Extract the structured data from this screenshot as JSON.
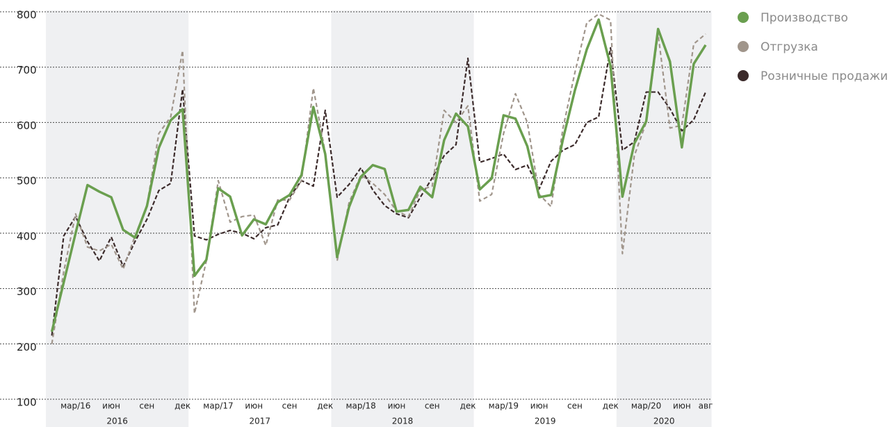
{
  "chart_data": {
    "type": "line",
    "categories": [
      null,
      null,
      "мар/16",
      null,
      null,
      "июн",
      null,
      null,
      "сен",
      null,
      null,
      "дек",
      null,
      null,
      "мар/17",
      null,
      null,
      "июн",
      null,
      null,
      "сен",
      null,
      null,
      "дек",
      null,
      null,
      "мар/18",
      null,
      null,
      "июн",
      null,
      null,
      "сен",
      null,
      null,
      "дек",
      null,
      null,
      "мар/19",
      null,
      null,
      "июн",
      null,
      null,
      "сен",
      null,
      null,
      "дек",
      null,
      null,
      "мар/20",
      null,
      null,
      "июн",
      null,
      "авг"
    ],
    "groups": [
      "2016",
      "2017",
      "2018",
      "2019",
      "2020"
    ],
    "ylim": [
      100,
      800
    ],
    "yticks": [
      100,
      200,
      300,
      400,
      500,
      600,
      700,
      800
    ],
    "grid": true,
    "series": [
      {
        "name": "Производство",
        "color": "#6a9f4f",
        "dash": null,
        "values": [
          222,
          311,
          400,
          487,
          475,
          465,
          406,
          392,
          449,
          554,
          604,
          624,
          323,
          352,
          481,
          466,
          396,
          425,
          416,
          456,
          469,
          505,
          628,
          543,
          357,
          447,
          502,
          523,
          516,
          439,
          442,
          484,
          465,
          568,
          616,
          593,
          479,
          499,
          613,
          607,
          557,
          465,
          469,
          570,
          658,
          732,
          786,
          702,
          466,
          562,
          602,
          769,
          710,
          555,
          706,
          740
        ]
      },
      {
        "name": "Отгрузка",
        "color": "#a0958b",
        "dash": "6,4",
        "values": [
          200,
          330,
          435,
          375,
          368,
          380,
          335,
          395,
          450,
          580,
          610,
          730,
          255,
          350,
          495,
          420,
          430,
          433,
          378,
          460,
          460,
          495,
          662,
          545,
          350,
          455,
          505,
          490,
          470,
          440,
          430,
          478,
          485,
          622,
          600,
          630,
          458,
          470,
          580,
          652,
          600,
          470,
          448,
          590,
          690,
          780,
          796,
          785,
          363,
          540,
          600,
          760,
          590,
          595,
          742,
          760
        ]
      },
      {
        "name": "Розничные продажи",
        "color": "#3b2a2a",
        "dash": "6,3",
        "values": [
          215,
          395,
          430,
          385,
          350,
          393,
          340,
          385,
          425,
          477,
          490,
          660,
          395,
          388,
          398,
          405,
          400,
          390,
          410,
          415,
          465,
          495,
          485,
          622,
          465,
          488,
          518,
          478,
          450,
          435,
          428,
          465,
          500,
          540,
          560,
          716,
          528,
          535,
          543,
          515,
          523,
          480,
          530,
          550,
          560,
          600,
          610,
          735,
          550,
          565,
          655,
          655,
          625,
          585,
          605,
          655
        ]
      }
    ]
  }
}
